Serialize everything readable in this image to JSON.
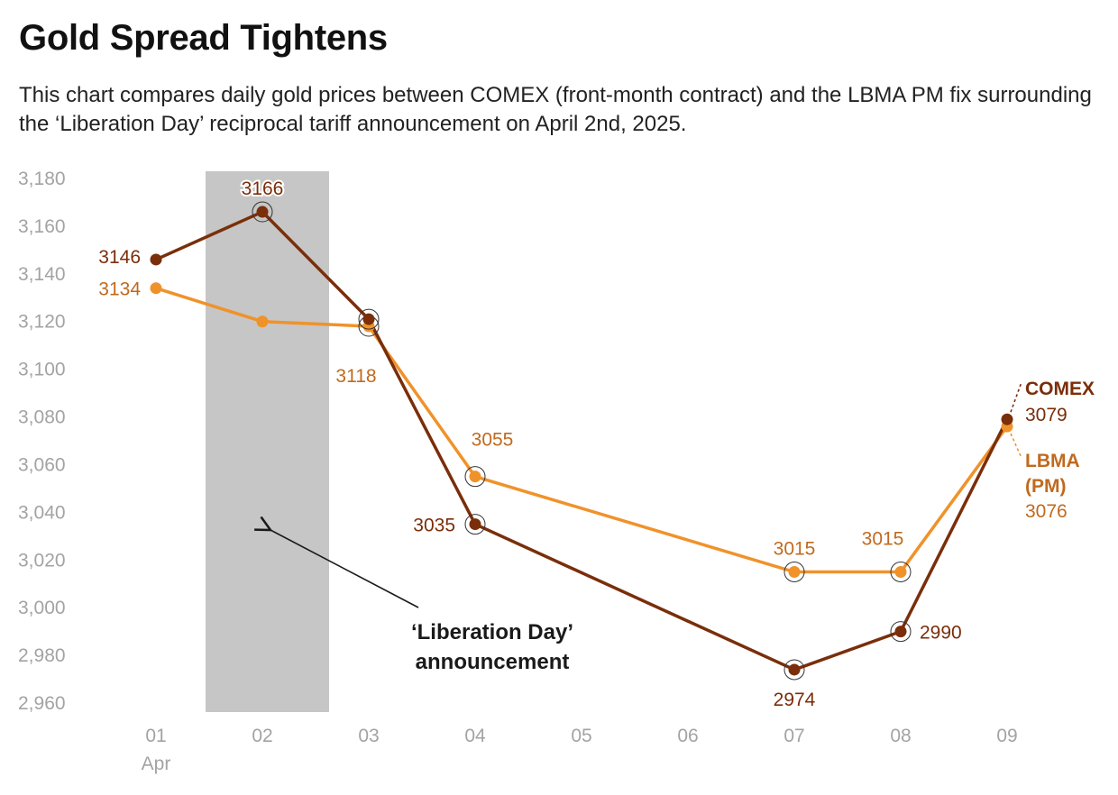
{
  "title": "Gold Spread Tightens",
  "subtitle": "This chart compares daily gold prices between COMEX (front-month contract) and the LBMA PM fix surrounding the ‘Liberation Day’ reciprocal tariff announcement on April 2nd, 2025.",
  "colors": {
    "comex": "#7a2e0a",
    "lbma": "#f0922a",
    "lbma_text": "#c06a1e",
    "shade": "#c6c6c6",
    "tick": "#a3a3a3"
  },
  "chart_data": {
    "type": "line",
    "x": [
      "01",
      "02",
      "03",
      "04",
      "05",
      "06",
      "07",
      "08",
      "09"
    ],
    "x_sublabel": {
      "index": 0,
      "text": "Apr"
    },
    "ylim": [
      2960,
      3180
    ],
    "yticks": [
      "2,960",
      "2,980",
      "3,000",
      "3,020",
      "3,040",
      "3,060",
      "3,080",
      "3,100",
      "3,120",
      "3,140",
      "3,160",
      "3,180"
    ],
    "grid": false,
    "series": [
      {
        "name": "COMEX",
        "points": [
          {
            "x": "01",
            "y": 3146,
            "label": "3146",
            "ring": false
          },
          {
            "x": "02",
            "y": 3166,
            "label": "3166",
            "ring": true
          },
          {
            "x": "03",
            "y": 3121,
            "label": "",
            "ring": true
          },
          {
            "x": "04",
            "y": 3035,
            "label": "3035",
            "ring": true
          },
          {
            "x": "07",
            "y": 2974,
            "label": "2974",
            "ring": true
          },
          {
            "x": "08",
            "y": 2990,
            "label": "2990",
            "ring": true
          },
          {
            "x": "09",
            "y": 3079,
            "label": "3079",
            "ring": false
          }
        ]
      },
      {
        "name": "LBMA (PM)",
        "name_lines": [
          "LBMA",
          "(PM)"
        ],
        "points": [
          {
            "x": "01",
            "y": 3134,
            "label": "3134",
            "ring": false
          },
          {
            "x": "02",
            "y": 3120,
            "label": "",
            "ring": false
          },
          {
            "x": "03",
            "y": 3118,
            "label": "3118",
            "ring": true
          },
          {
            "x": "04",
            "y": 3055,
            "label": "3055",
            "ring": true
          },
          {
            "x": "07",
            "y": 3015,
            "label": "3015",
            "ring": true
          },
          {
            "x": "08",
            "y": 3015,
            "label": "3015",
            "ring": true
          },
          {
            "x": "09",
            "y": 3076,
            "label": "3076",
            "ring": false
          }
        ]
      }
    ],
    "shaded_band": {
      "x": "02"
    },
    "annotation": {
      "lines": [
        "‘Liberation Day’",
        "announcement"
      ]
    }
  }
}
